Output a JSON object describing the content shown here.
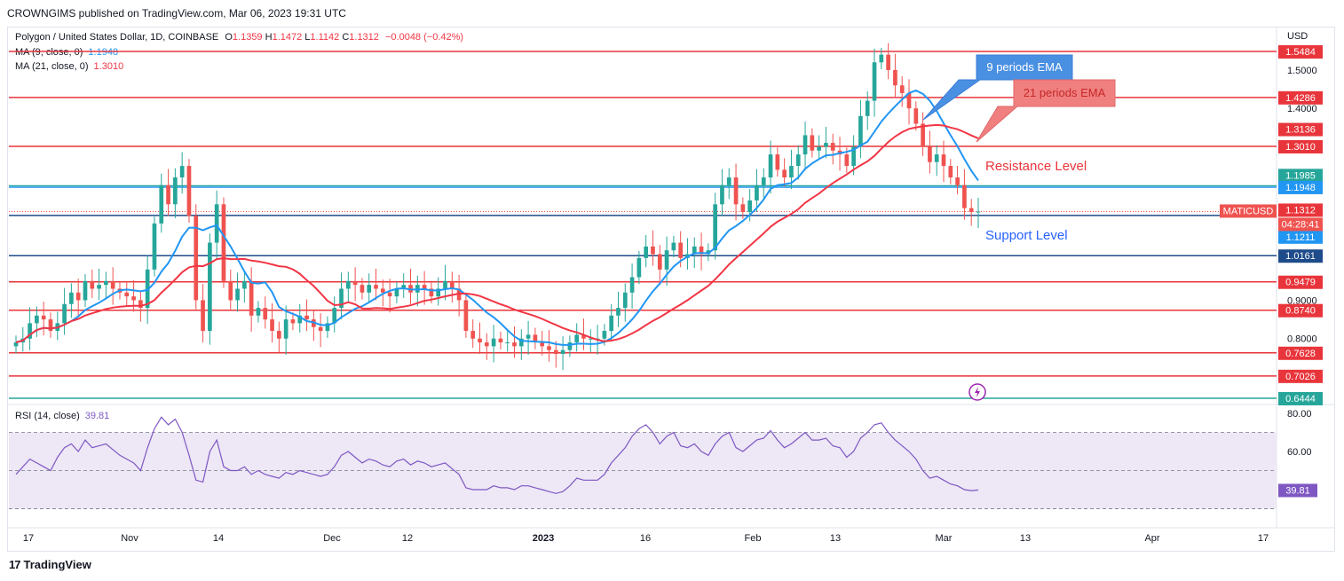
{
  "header": {
    "publisher": "CROWNGIMS published on TradingView.com, Mar 06, 2023 19:31 UTC"
  },
  "legend": {
    "symbol": "Polygon / United States Dollar, 1D, COINBASE",
    "o_label": "O",
    "o": "1.1359",
    "h_label": "H",
    "h": "1.1472",
    "l_label": "L",
    "l": "1.1142",
    "c_label": "C",
    "c": "1.1312",
    "change": "−0.0048 (−0.42%)",
    "ma9_label": "MA (9, close, 0)",
    "ma9_value": "1.1948",
    "ma21_label": "MA (21, close, 0)",
    "ma21_value": "1.3010",
    "rsi_label": "RSI (14, close)",
    "rsi_value": "39.81"
  },
  "currency": "USD",
  "annotations": {
    "ema9": "9 periods EMA",
    "ema21": "21 periods EMA",
    "resistance": "Resistance Level",
    "support": "Support Level"
  },
  "footer": {
    "brand": "TradingView",
    "logo_glyph": "17"
  },
  "colors": {
    "up": "#26a69a",
    "down": "#ef5350",
    "ma9": "#2196f3",
    "ma21": "#f23645",
    "red_level": "#e8353b",
    "blue_level": "#1e4b8a",
    "teal_level": "#26a69a",
    "rsi": "#7e57c2",
    "rsi_band": "#ede7f6"
  },
  "chart_data": {
    "type": "candlestick",
    "symbol": "MATICUSD",
    "price_axis_ticks": [
      "1.5000",
      "1.4000",
      "0.9000",
      "0.8000"
    ],
    "x_tick_labels": [
      "17",
      "Nov",
      "14",
      "Dec",
      "12",
      "2023",
      "16",
      "Feb",
      "13",
      "Mar",
      "13",
      "Apr",
      "17"
    ],
    "horizontal_levels": [
      {
        "value": 1.5484,
        "label": "1.5484",
        "color": "red"
      },
      {
        "value": 1.4286,
        "label": "1.4286",
        "color": "red"
      },
      {
        "value": 1.3136,
        "label": "1.3136",
        "color": "red"
      },
      {
        "value": 1.301,
        "label": "1.3010",
        "color": "red"
      },
      {
        "value": 1.1985,
        "label": "1.1985",
        "color": "teal"
      },
      {
        "value": 1.1948,
        "label": "1.1948",
        "color": "blue"
      },
      {
        "value": 1.1312,
        "label": "1.1312",
        "color": "red"
      },
      {
        "value": 1.1211,
        "label": "1.1211",
        "color": "blue"
      },
      {
        "value": 1.0161,
        "label": "1.0161",
        "color": "navy"
      },
      {
        "value": 0.9479,
        "label": "0.9479",
        "color": "red"
      },
      {
        "value": 0.874,
        "label": "0.8740",
        "color": "red"
      },
      {
        "value": 0.7628,
        "label": "0.7628",
        "color": "red"
      },
      {
        "value": 0.7026,
        "label": "0.7026",
        "color": "red"
      },
      {
        "value": 0.6444,
        "label": "0.6444",
        "color": "teal"
      }
    ],
    "last_price_tag": {
      "symbol": "MATICUSD",
      "price": "1.1312",
      "countdown": "04:28:41"
    },
    "closes": [
      0.79,
      0.8,
      0.84,
      0.86,
      0.85,
      0.82,
      0.84,
      0.89,
      0.92,
      0.9,
      0.95,
      0.93,
      0.94,
      0.95,
      0.93,
      0.92,
      0.91,
      0.9,
      0.88,
      0.98,
      1.1,
      1.2,
      1.15,
      1.22,
      1.25,
      1.12,
      0.9,
      0.82,
      1.05,
      1.15,
      0.95,
      0.9,
      0.93,
      0.95,
      0.86,
      0.88,
      0.85,
      0.82,
      0.8,
      0.85,
      0.84,
      0.86,
      0.85,
      0.83,
      0.82,
      0.84,
      0.88,
      0.93,
      0.95,
      0.94,
      0.92,
      0.94,
      0.93,
      0.92,
      0.91,
      0.93,
      0.94,
      0.92,
      0.94,
      0.93,
      0.91,
      0.93,
      0.95,
      0.93,
      0.9,
      0.82,
      0.8,
      0.79,
      0.78,
      0.8,
      0.79,
      0.79,
      0.78,
      0.8,
      0.81,
      0.79,
      0.78,
      0.77,
      0.76,
      0.77,
      0.79,
      0.81,
      0.8,
      0.8,
      0.8,
      0.82,
      0.86,
      0.88,
      0.92,
      0.96,
      1.01,
      1.04,
      1.02,
      0.98,
      1.03,
      1.05,
      1.01,
      1.02,
      1.04,
      1.02,
      1.03,
      1.15,
      1.2,
      1.22,
      1.15,
      1.13,
      1.16,
      1.2,
      1.22,
      1.28,
      1.24,
      1.22,
      1.25,
      1.28,
      1.33,
      1.29,
      1.3,
      1.31,
      1.29,
      1.28,
      1.25,
      1.3,
      1.38,
      1.42,
      1.52,
      1.54,
      1.5,
      1.46,
      1.44,
      1.4,
      1.36,
      1.3,
      1.26,
      1.28,
      1.25,
      1.22,
      1.2,
      1.14,
      1.13,
      1.131
    ],
    "ma9_last": 1.1948,
    "ma21_last": 1.301,
    "rsi": {
      "axis_ticks": [
        "80.00",
        "60.00"
      ],
      "levels": [
        70,
        50,
        30
      ],
      "values": [
        48,
        52,
        56,
        54,
        52,
        50,
        57,
        62,
        64,
        60,
        66,
        62,
        63,
        64,
        61,
        58,
        56,
        54,
        50,
        62,
        72,
        78,
        74,
        77,
        70,
        58,
        45,
        44,
        60,
        66,
        52,
        50,
        50,
        52,
        48,
        50,
        48,
        47,
        46,
        49,
        48,
        50,
        49,
        48,
        47,
        48,
        52,
        58,
        60,
        57,
        54,
        56,
        55,
        53,
        52,
        55,
        56,
        53,
        55,
        54,
        52,
        53,
        54,
        51,
        48,
        41,
        40,
        40,
        40,
        42,
        41,
        41,
        40,
        42,
        42,
        41,
        40,
        39,
        38,
        39,
        42,
        46,
        45,
        45,
        45,
        48,
        54,
        58,
        62,
        68,
        72,
        74,
        70,
        64,
        68,
        70,
        63,
        62,
        64,
        60,
        58,
        64,
        68,
        70,
        62,
        60,
        63,
        66,
        67,
        71,
        66,
        62,
        64,
        67,
        70,
        66,
        66,
        67,
        63,
        62,
        57,
        60,
        67,
        70,
        74,
        75,
        70,
        66,
        63,
        60,
        56,
        50,
        46,
        47,
        45,
        43,
        42,
        40,
        39.5,
        39.81
      ]
    }
  }
}
